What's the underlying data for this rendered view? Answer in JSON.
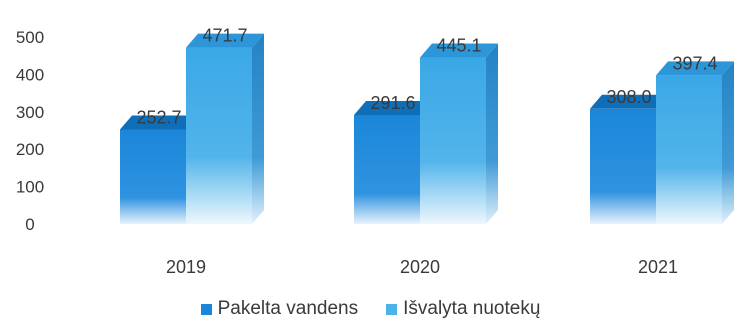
{
  "chart_data": {
    "type": "bar",
    "style": "3d-clustered",
    "categories": [
      "2019",
      "2020",
      "2021"
    ],
    "series": [
      {
        "name": "Pakelta vandens",
        "values": [
          252.7,
          291.6,
          308.0
        ],
        "labels": [
          "252.7",
          "291.6",
          "308.0"
        ],
        "color": "#1b86d9"
      },
      {
        "name": "Išvalyta nuotekų",
        "values": [
          471.7,
          445.1,
          397.4
        ],
        "labels": [
          "471.7",
          "445.1",
          "397.4"
        ],
        "color": "#3aa8e6"
      }
    ],
    "yticks": [
      "0",
      "100",
      "200",
      "300",
      "400",
      "500"
    ],
    "ylim": [
      0,
      500
    ],
    "grid": false,
    "legend": "bottom"
  }
}
